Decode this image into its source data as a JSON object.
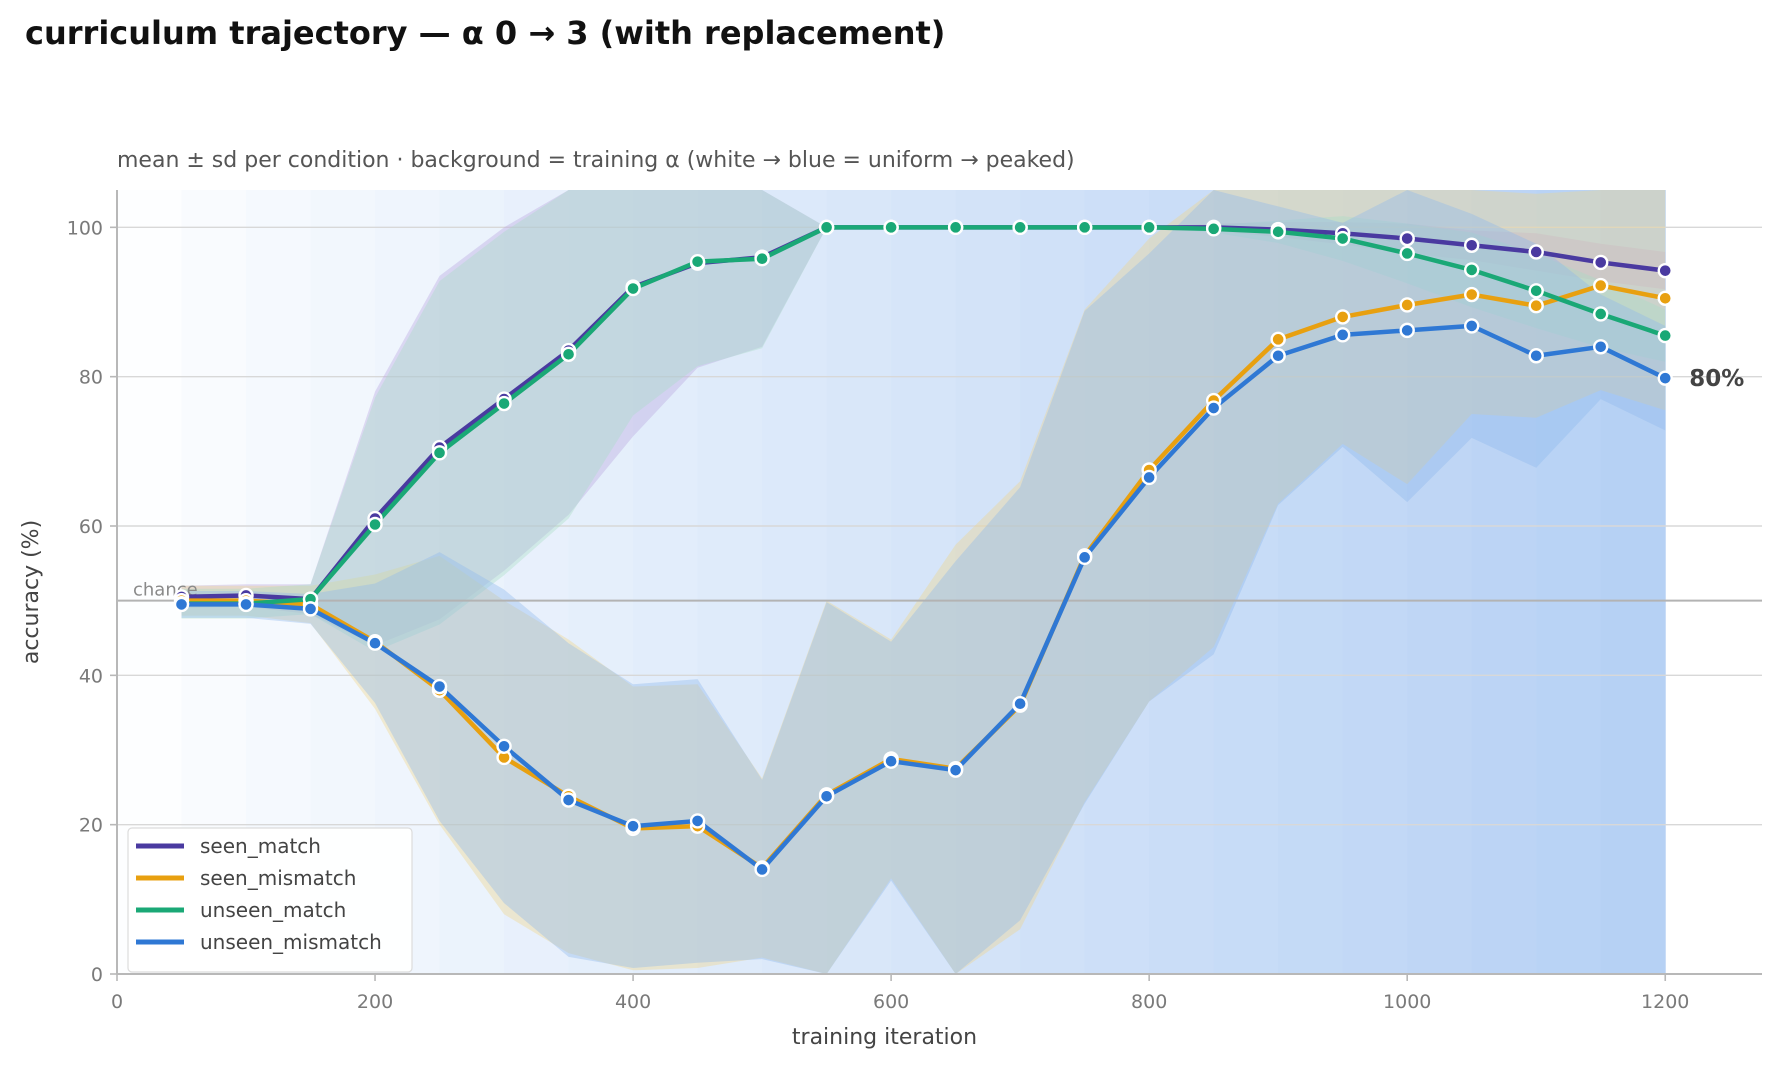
{
  "chart_data": {
    "type": "line",
    "title": "curriculum trajectory — α 0 → 3 (with replacement)",
    "subtitle": "mean ± sd per condition · background = training α (white → blue = uniform → peaked)",
    "xlabel": "training iteration",
    "ylabel": "accuracy (%)",
    "xlim": [
      0,
      1275
    ],
    "ylim": [
      0,
      105
    ],
    "xticks": [
      0,
      200,
      400,
      600,
      800,
      1000,
      1200
    ],
    "yticks": [
      0,
      20,
      40,
      60,
      80,
      100
    ],
    "grid": "horizontal",
    "legend_position": "lower-left",
    "chance": {
      "value": 50,
      "label": "chance"
    },
    "end_annotation": {
      "text": "80%",
      "x": 1200,
      "y": 79.8
    },
    "background": {
      "description_key": "training α",
      "alpha_start": 0,
      "alpha_end": 3,
      "color_low": "#ffffff",
      "color_high": "#b5d0f4"
    },
    "x": [
      50,
      100,
      150,
      200,
      250,
      300,
      350,
      400,
      450,
      500,
      550,
      600,
      650,
      700,
      750,
      800,
      850,
      900,
      950,
      1000,
      1050,
      1100,
      1150,
      1200
    ],
    "series": [
      {
        "name": "seen_match",
        "color": "#4a3aa0",
        "band_color": "#b9a6e0",
        "values": [
          50.5,
          50.7,
          50.2,
          61.0,
          70.5,
          77.0,
          83.5,
          92.0,
          95.2,
          96.0,
          100,
          100,
          100,
          100,
          100,
          100,
          100,
          99.7,
          99.2,
          98.5,
          97.6,
          96.7,
          95.3,
          94.2
        ],
        "sd": [
          1.5,
          1.5,
          2.0,
          17,
          23,
          23,
          22,
          20,
          14,
          12,
          0,
          0,
          0,
          0,
          0,
          0,
          0.5,
          1.0,
          1.5,
          2.0,
          2.0,
          2.5,
          2.5,
          2.5
        ]
      },
      {
        "name": "seen_mismatch",
        "color": "#e8a010",
        "band_color": "#f0d68a",
        "values": [
          50.0,
          50.0,
          49.5,
          44.5,
          38.0,
          29.0,
          23.8,
          19.5,
          19.8,
          14.2,
          24.0,
          28.8,
          27.5,
          36.0,
          56.0,
          67.5,
          76.8,
          85.0,
          88.0,
          89.6,
          91.0,
          89.5,
          92.2,
          90.5
        ],
        "sd": [
          2.0,
          2.0,
          2.5,
          9,
          18,
          21,
          21,
          19,
          19,
          12,
          26,
          16,
          30,
          30,
          33,
          31,
          33,
          22,
          17,
          24,
          16,
          15,
          14,
          15
        ]
      },
      {
        "name": "unseen_match",
        "color": "#1aa876",
        "band_color": "#a8dcc4",
        "values": [
          49.6,
          49.6,
          50.2,
          60.2,
          69.8,
          76.4,
          83.0,
          91.8,
          95.4,
          95.8,
          100,
          100,
          100,
          100,
          100,
          100,
          99.8,
          99.4,
          98.5,
          96.5,
          94.3,
          91.5,
          88.4,
          85.5
        ],
        "sd": [
          2.0,
          2.0,
          2.0,
          17,
          23,
          23,
          22,
          17,
          14,
          12,
          0,
          0,
          0,
          0,
          0,
          0,
          0.5,
          1.5,
          3.0,
          4.0,
          5.0,
          5.0,
          4.5,
          3.5
        ]
      },
      {
        "name": "unseen_mismatch",
        "color": "#2f78d4",
        "band_color": "#8fb9ec",
        "values": [
          49.5,
          49.5,
          48.9,
          44.3,
          38.5,
          30.5,
          23.3,
          19.8,
          20.5,
          14.0,
          23.8,
          28.5,
          27.3,
          36.2,
          55.8,
          66.5,
          75.8,
          82.8,
          85.6,
          86.2,
          86.8,
          82.8,
          84.0,
          79.8
        ],
        "sd": [
          1.8,
          1.8,
          2.0,
          8,
          18,
          21,
          21,
          19,
          19,
          12,
          26,
          16,
          28,
          29,
          33,
          30,
          33,
          20,
          15,
          23,
          15,
          15,
          7,
          7
        ]
      }
    ]
  }
}
